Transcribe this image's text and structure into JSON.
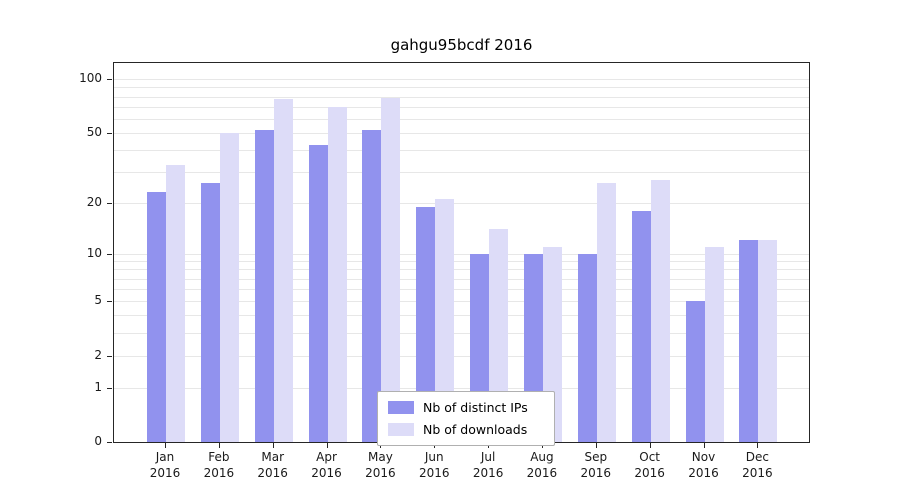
{
  "title": "gahgu95bcdf 2016",
  "chart_data": {
    "type": "bar",
    "title": "gahgu95bcdf 2016",
    "categories": [
      "Jan",
      "Feb",
      "Mar",
      "Apr",
      "May",
      "Jun",
      "Jul",
      "Aug",
      "Sep",
      "Oct",
      "Nov",
      "Dec"
    ],
    "year": "2016",
    "series": [
      {
        "name": "Nb of distinct IPs",
        "color": "#9192ee",
        "values": [
          23,
          26,
          52,
          43,
          52,
          19,
          10,
          10,
          10,
          18,
          5,
          12
        ]
      },
      {
        "name": "Nb of downloads",
        "color": "#dddcf8",
        "values": [
          33,
          50,
          78,
          70,
          79,
          21,
          14,
          11,
          26,
          27,
          11,
          12
        ]
      }
    ],
    "y_axis": {
      "scale": "log1p",
      "ticks": [
        0,
        1,
        2,
        5,
        10,
        20,
        50,
        100
      ],
      "minor_gridlines": [
        1,
        2,
        3,
        4,
        5,
        6,
        7,
        8,
        9,
        10,
        20,
        30,
        40,
        50,
        60,
        70,
        80,
        90,
        100
      ],
      "ylim": [
        0,
        122
      ]
    },
    "legend": {
      "position": "bottom-center"
    },
    "grid": true
  }
}
